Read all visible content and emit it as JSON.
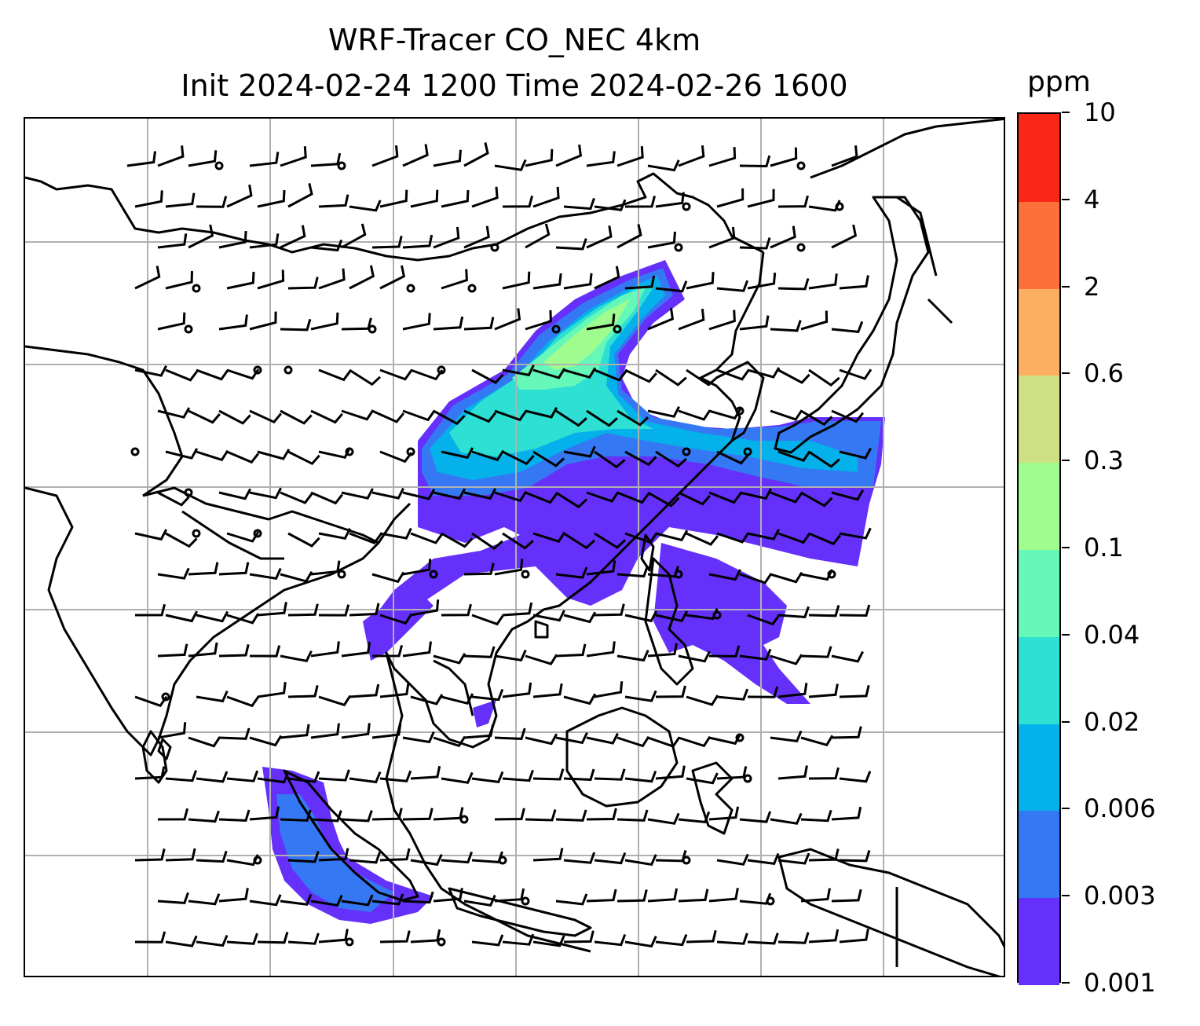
{
  "title": {
    "line1": "WRF-Tracer CO_NEC 4km",
    "line2": "Init 2024-02-24 1200 Time 2024-02-26 1600"
  },
  "colorbar": {
    "unit": "ppm",
    "levels": [
      "0.001",
      "0.003",
      "0.006",
      "0.02",
      "0.04",
      "0.1",
      "0.3",
      "0.6",
      "2",
      "4",
      "10"
    ],
    "colors": [
      "#6430fa",
      "#3578f4",
      "#05b1ea",
      "#2ee0d4",
      "#66f8b8",
      "#9ffd8f",
      "#cde083",
      "#fcaf5f",
      "#fd7039",
      "#fa2717"
    ]
  },
  "map": {
    "gridlines": true,
    "gridline_color": "#b0b0b0",
    "coastline_color": "#000000",
    "barb_color": "#000000"
  }
}
